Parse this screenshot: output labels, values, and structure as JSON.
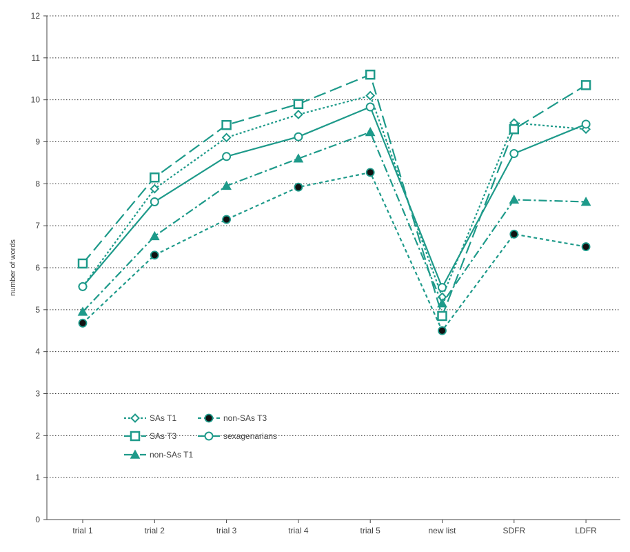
{
  "chart_data": {
    "type": "line",
    "title": "",
    "xlabel": "",
    "ylabel": "number of words",
    "ylim": [
      0,
      12
    ],
    "yticks": [
      "0",
      "1",
      "2",
      "3",
      "4",
      "5",
      "6",
      "7",
      "8",
      "9",
      "10",
      "11",
      "12"
    ],
    "categories": [
      "trial 1",
      "trial 2",
      "trial 3",
      "trial 4",
      "trial 5",
      "new list",
      "SDFR",
      "LDFR"
    ],
    "grid": "horizontal dotted",
    "legend_position": "lower-left",
    "series": [
      {
        "name": "SAs T1",
        "color": "#1e9a8a",
        "line": "dotted",
        "marker": "diamond-open",
        "values": [
          5.55,
          7.88,
          9.1,
          9.65,
          10.1,
          5.3,
          9.45,
          9.3
        ]
      },
      {
        "name": "SAs T3",
        "color": "#1e9a8a",
        "line": "long-dash",
        "marker": "square-open",
        "values": [
          6.1,
          8.15,
          9.4,
          9.9,
          10.6,
          4.85,
          9.3,
          10.35
        ]
      },
      {
        "name": "non-SAs T1",
        "color": "#1e9a8a",
        "line": "dash-dot",
        "marker": "triangle-filled",
        "values": [
          4.95,
          6.75,
          7.95,
          8.6,
          9.23,
          5.15,
          7.62,
          7.57
        ]
      },
      {
        "name": "non-SAs T3",
        "color": "#1e9a8a",
        "line": "dashed",
        "marker": "circle-black",
        "values": [
          4.68,
          6.3,
          7.15,
          7.92,
          8.27,
          4.5,
          6.8,
          6.5
        ]
      },
      {
        "name": "sexagenarians",
        "color": "#1e9a8a",
        "line": "solid",
        "marker": "circle-open",
        "values": [
          5.55,
          7.57,
          8.65,
          9.12,
          9.83,
          5.53,
          8.72,
          9.42
        ]
      }
    ]
  }
}
